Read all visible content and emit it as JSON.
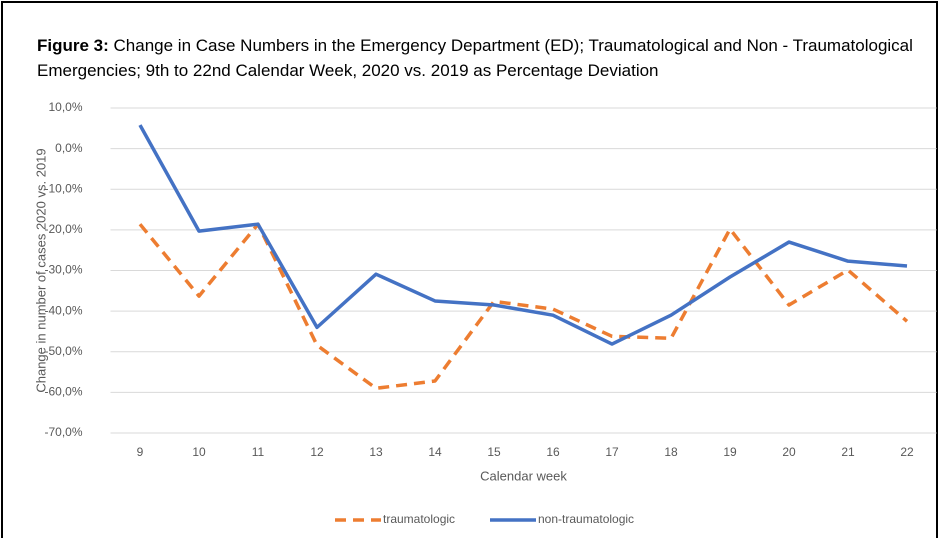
{
  "chart_data": {
    "type": "line",
    "title_label": "Figure 3:",
    "title": "Change in Case Numbers in the Emergency Department (ED); Traumatological and Non - Traumatological Emergencies; 9th to 22nd Calendar Week, 2020 vs. 2019 as Percentage Deviation",
    "x_label": "Calendar week",
    "y_label": "Change in number of cases 2020 vs. 2019",
    "categories": [
      "9",
      "10",
      "11",
      "12",
      "13",
      "14",
      "15",
      "16",
      "17",
      "18",
      "19",
      "20",
      "21",
      "22"
    ],
    "series": [
      {
        "name": "traumatologic",
        "color": "#ed7d31",
        "dashed": true,
        "values": [
          -18.6,
          -36.3,
          -18.6,
          -48.4,
          -59.0,
          -57.2,
          -37.6,
          -39.5,
          -46.2,
          -46.7,
          -19.8,
          -38.5,
          -29.9,
          -42.5
        ]
      },
      {
        "name": "non-traumatologic",
        "color": "#4472c4",
        "dashed": false,
        "values": [
          5.8,
          -20.3,
          -18.6,
          -44.0,
          -30.9,
          -37.5,
          -38.5,
          -41.0,
          -48.1,
          -41.0,
          -31.6,
          -23.0,
          -27.7,
          -28.9
        ]
      }
    ],
    "ylim": [
      -70,
      10
    ],
    "yticks": [
      {
        "value": -70,
        "label": "-70,0%"
      },
      {
        "value": -60,
        "label": "-60,0%"
      },
      {
        "value": -50,
        "label": "-50,0%"
      },
      {
        "value": -40,
        "label": "-40,0%"
      },
      {
        "value": -30,
        "label": "-30,0%"
      },
      {
        "value": -20,
        "label": "-20,0%"
      },
      {
        "value": -10,
        "label": "-10,0%"
      },
      {
        "value": 0,
        "label": "0,0%"
      },
      {
        "value": 10,
        "label": "10,0%"
      }
    ],
    "grid": true,
    "legend": "bottom"
  }
}
